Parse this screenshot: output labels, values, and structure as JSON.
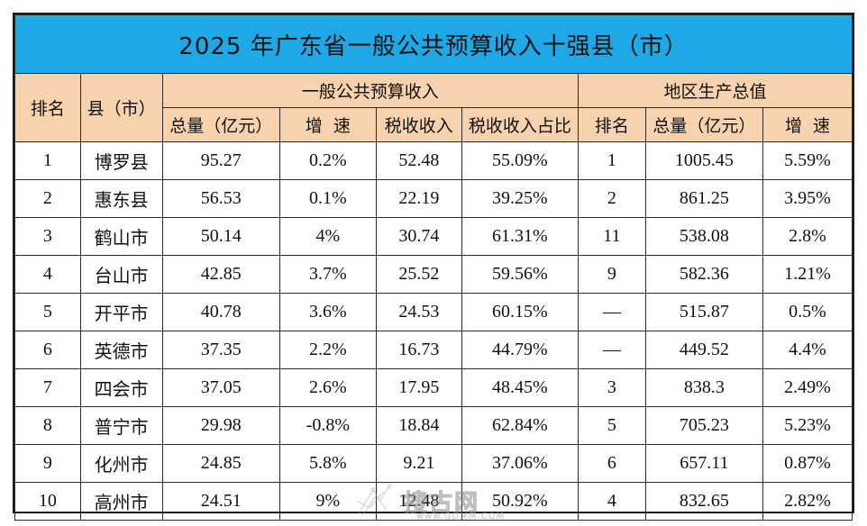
{
  "title": "2025 年广东省一般公共预算收入十强县（市）",
  "headers": {
    "rank": "排名",
    "county": "县（市）",
    "budget_group": "一般公共预算收入",
    "gdp_group": "地区生产总值",
    "budget_total": "总量（亿元）",
    "budget_growth": "增  速",
    "tax_revenue": "税收收入",
    "tax_share": "税收收入占比",
    "gdp_rank": "排名",
    "gdp_total": "总量（亿元）",
    "gdp_growth": "增  速"
  },
  "rows": [
    {
      "rank": "1",
      "county": "博罗县",
      "budget_total": "95.27",
      "budget_growth": "0.2%",
      "tax_revenue": "52.48",
      "tax_share": "55.09%",
      "gdp_rank": "1",
      "gdp_total": "1005.45",
      "gdp_growth": "5.59%"
    },
    {
      "rank": "2",
      "county": "惠东县",
      "budget_total": "56.53",
      "budget_growth": "0.1%",
      "tax_revenue": "22.19",
      "tax_share": "39.25%",
      "gdp_rank": "2",
      "gdp_total": "861.25",
      "gdp_growth": "3.95%"
    },
    {
      "rank": "3",
      "county": "鹤山市",
      "budget_total": "50.14",
      "budget_growth": "4%",
      "tax_revenue": "30.74",
      "tax_share": "61.31%",
      "gdp_rank": "11",
      "gdp_total": "538.08",
      "gdp_growth": "2.8%"
    },
    {
      "rank": "4",
      "county": "台山市",
      "budget_total": "42.85",
      "budget_growth": "3.7%",
      "tax_revenue": "25.52",
      "tax_share": "59.56%",
      "gdp_rank": "9",
      "gdp_total": "582.36",
      "gdp_growth": "1.21%"
    },
    {
      "rank": "5",
      "county": "开平市",
      "budget_total": "40.78",
      "budget_growth": "3.6%",
      "tax_revenue": "24.53",
      "tax_share": "60.15%",
      "gdp_rank": "—",
      "gdp_total": "515.87",
      "gdp_growth": "0.5%"
    },
    {
      "rank": "6",
      "county": "英德市",
      "budget_total": "37.35",
      "budget_growth": "2.2%",
      "tax_revenue": "16.73",
      "tax_share": "44.79%",
      "gdp_rank": "—",
      "gdp_total": "449.52",
      "gdp_growth": "4.4%"
    },
    {
      "rank": "7",
      "county": "四会市",
      "budget_total": "37.05",
      "budget_growth": "2.6%",
      "tax_revenue": "17.95",
      "tax_share": "48.45%",
      "gdp_rank": "3",
      "gdp_total": "838.3",
      "gdp_growth": "2.49%"
    },
    {
      "rank": "8",
      "county": "普宁市",
      "budget_total": "29.98",
      "budget_growth": "-0.8%",
      "tax_revenue": "18.84",
      "tax_share": "62.84%",
      "gdp_rank": "5",
      "gdp_total": "705.23",
      "gdp_growth": "5.23%"
    },
    {
      "rank": "9",
      "county": "化州市",
      "budget_total": "24.85",
      "budget_growth": "5.8%",
      "tax_revenue": "9.21",
      "tax_share": "37.06%",
      "gdp_rank": "6",
      "gdp_total": "657.11",
      "gdp_growth": "0.87%"
    },
    {
      "rank": "10",
      "county": "高州市",
      "budget_total": "24.51",
      "budget_growth": "9%",
      "tax_revenue": "12.48",
      "tax_share": "50.92%",
      "gdp_rank": "4",
      "gdp_total": "832.65",
      "gdp_growth": "2.82%"
    }
  ],
  "watermark": {
    "text": "搜古网",
    "url": "www.GDMM.COM"
  },
  "colors": {
    "title_bg": "#1ea9e6",
    "header_bg": "#f7d2ae",
    "border": "#2a2a2a"
  }
}
